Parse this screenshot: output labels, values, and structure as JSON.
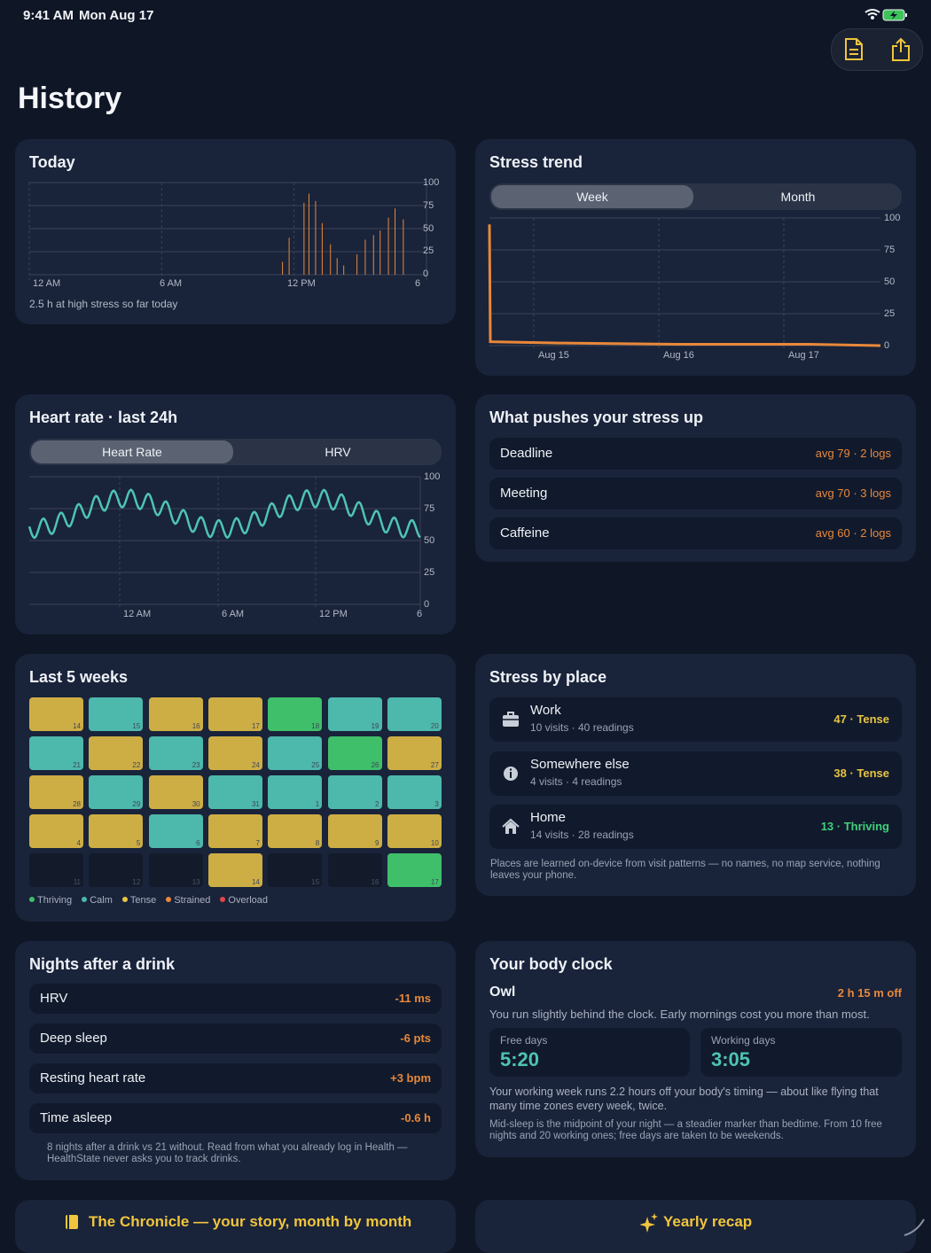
{
  "status": {
    "time": "9:41 AM",
    "date": "Mon Aug 17"
  },
  "title": "History",
  "toolbar": {
    "doc_icon": "document-icon",
    "share_icon": "share-icon"
  },
  "today": {
    "title": "Today",
    "y_ticks": [
      "100",
      "75",
      "50",
      "25",
      "0"
    ],
    "x_ticks": [
      "12 AM",
      "6 AM",
      "12 PM",
      "6"
    ],
    "caption": "2.5 h at high stress so far today",
    "chart_data": {
      "type": "bar",
      "x_hours": [
        15.3,
        15.7,
        16.6,
        16.9,
        17.3,
        17.7,
        18.2,
        18.6,
        19.0,
        19.8,
        20.3,
        20.8,
        21.2,
        21.7,
        22.1,
        22.6
      ],
      "values": [
        14,
        40,
        78,
        88,
        80,
        56,
        33,
        18,
        10,
        22,
        38,
        43,
        48,
        62,
        72,
        60
      ],
      "ylim": [
        0,
        100
      ],
      "xlim_hours": [
        0,
        24
      ],
      "color": "#e8883a"
    }
  },
  "stress_trend": {
    "title": "Stress trend",
    "tabs": [
      "Week",
      "Month"
    ],
    "y_ticks": [
      "100",
      "75",
      "50",
      "25",
      "0"
    ],
    "x_ticks": [
      "Aug 15",
      "Aug 16",
      "Aug 17"
    ],
    "chart_data": {
      "type": "line",
      "x": [
        "Aug 14",
        "Aug 14",
        "Aug 15",
        "Aug 16",
        "Aug 17",
        "Aug 17"
      ],
      "values": [
        95,
        3,
        2,
        1,
        1,
        0
      ],
      "ylim": [
        0,
        100
      ],
      "color": "#e8883a"
    }
  },
  "heart": {
    "title": "Heart rate · last 24h",
    "tabs": [
      "Heart Rate",
      "HRV"
    ],
    "y_ticks": [
      "100",
      "75",
      "50",
      "25",
      "0"
    ],
    "x_ticks": [
      "12 AM",
      "6 AM",
      "12 PM",
      "6"
    ],
    "chart_data": {
      "type": "line",
      "xlim_hours": [
        -5,
        19.5
      ],
      "ylim": [
        0,
        100
      ],
      "color": "#4ec4b3",
      "base": 71,
      "amp_slow": 12,
      "period_slow_h": 12,
      "amp_fast": 7,
      "period_fast_h": 1.1
    }
  },
  "pushes": {
    "title": "What pushes your stress up",
    "items": [
      {
        "label": "Deadline",
        "value": "avg 79 · 2 logs"
      },
      {
        "label": "Meeting",
        "value": "avg 70 · 3 logs"
      },
      {
        "label": "Caffeine",
        "value": "avg 60 · 2 logs"
      }
    ]
  },
  "weeks": {
    "title": "Last 5 weeks",
    "colors": {
      "Thriving": "#3fbf6a",
      "Calm": "#4db8ac",
      "Tense": "#cdae45",
      "Empty": "#131b2b"
    },
    "cells": [
      {
        "day": "14",
        "state": "Tense"
      },
      {
        "day": "15",
        "state": "Calm"
      },
      {
        "day": "16",
        "state": "Tense"
      },
      {
        "day": "17",
        "state": "Tense"
      },
      {
        "day": "18",
        "state": "Thriving"
      },
      {
        "day": "19",
        "state": "Calm"
      },
      {
        "day": "20",
        "state": "Calm"
      },
      {
        "day": "21",
        "state": "Calm"
      },
      {
        "day": "22",
        "state": "Tense"
      },
      {
        "day": "23",
        "state": "Calm"
      },
      {
        "day": "24",
        "state": "Tense"
      },
      {
        "day": "25",
        "state": "Calm"
      },
      {
        "day": "26",
        "state": "Thriving"
      },
      {
        "day": "27",
        "state": "Tense"
      },
      {
        "day": "28",
        "state": "Tense"
      },
      {
        "day": "29",
        "state": "Calm"
      },
      {
        "day": "30",
        "state": "Tense"
      },
      {
        "day": "31",
        "state": "Calm"
      },
      {
        "day": "1",
        "state": "Calm"
      },
      {
        "day": "2",
        "state": "Calm"
      },
      {
        "day": "3",
        "state": "Calm"
      },
      {
        "day": "4",
        "state": "Tense"
      },
      {
        "day": "5",
        "state": "Tense"
      },
      {
        "day": "6",
        "state": "Calm"
      },
      {
        "day": "7",
        "state": "Tense"
      },
      {
        "day": "8",
        "state": "Tense"
      },
      {
        "day": "9",
        "state": "Tense"
      },
      {
        "day": "10",
        "state": "Tense"
      },
      {
        "day": "11",
        "state": "Empty"
      },
      {
        "day": "12",
        "state": "Empty"
      },
      {
        "day": "13",
        "state": "Empty"
      },
      {
        "day": "14",
        "state": "Tense"
      },
      {
        "day": "15",
        "state": "Empty"
      },
      {
        "day": "16",
        "state": "Empty"
      },
      {
        "day": "17",
        "state": "Thriving"
      }
    ],
    "legend": [
      {
        "label": "Thriving",
        "color": "#3fbf6a"
      },
      {
        "label": "Calm",
        "color": "#4db8ac"
      },
      {
        "label": "Tense",
        "color": "#e8c443"
      },
      {
        "label": "Strained",
        "color": "#e8883a"
      },
      {
        "label": "Overload",
        "color": "#e04848"
      }
    ]
  },
  "places": {
    "title": "Stress by place",
    "items": [
      {
        "icon": "briefcase-icon",
        "name": "Work",
        "sub": "10 visits · 40 readings",
        "score": "47 · Tense",
        "color": "#e8c443"
      },
      {
        "icon": "info-icon",
        "name": "Somewhere else",
        "sub": "4 visits · 4 readings",
        "score": "38 · Tense",
        "color": "#e8c443"
      },
      {
        "icon": "house-icon",
        "name": "Home",
        "sub": "14 visits · 28 readings",
        "score": "13 · Thriving",
        "color": "#3fd07a"
      }
    ],
    "note": "Places are learned on-device from visit patterns — no names, no map service, nothing leaves your phone."
  },
  "drink": {
    "title": "Nights after a drink",
    "items": [
      {
        "label": "HRV",
        "value": "-11 ms"
      },
      {
        "label": "Deep sleep",
        "value": "-6 pts"
      },
      {
        "label": "Resting heart rate",
        "value": "+3 bpm"
      },
      {
        "label": "Time asleep",
        "value": "-0.6 h"
      }
    ],
    "note": "8 nights after a drink vs 21 without. Read from what you already log in Health — HealthState never asks you to track drinks."
  },
  "clock": {
    "title": "Your body clock",
    "type": "Owl",
    "offset": "2 h 15 m off",
    "desc": "You run slightly behind the clock. Early mornings cost you more than most.",
    "free_label": "Free days",
    "free_value": "5:20",
    "work_label": "Working days",
    "work_value": "3:05",
    "note1": "Your working week runs 2.2 hours off your body's timing — about like flying that many time zones every week, twice.",
    "note2": "Mid-sleep is the midpoint of your night — a steadier marker than bedtime. From 10 free nights and 20 working ones; free days are taken to be weekends."
  },
  "chronicle": {
    "icon": "book-icon",
    "label": "The Chronicle — your story, month by month"
  },
  "recap": {
    "icon": "sparkles-icon",
    "label": "Yearly recap"
  }
}
